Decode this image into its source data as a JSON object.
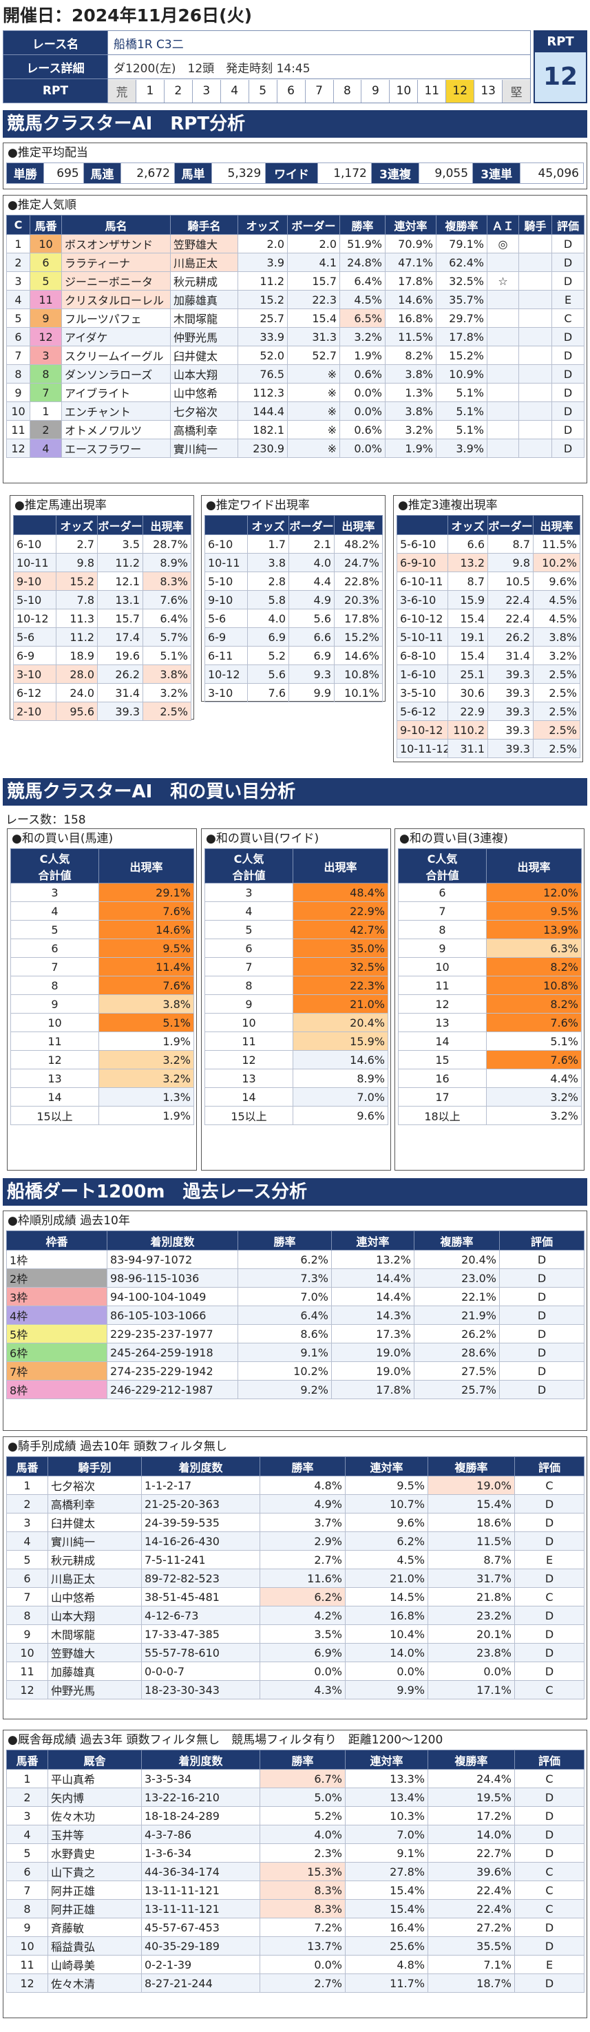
{
  "header": {
    "date": "開催日：2024年11月26日(火)",
    "race_name_label": "レース名",
    "race_name": "船橋1R C3二",
    "race_detail_label": "レース詳細",
    "race_detail": "ダ1200(左)　12頭　発走時刻 14:45",
    "rpt_label": "RPT",
    "rpt_scale": [
      "荒",
      "1",
      "2",
      "3",
      "4",
      "5",
      "6",
      "7",
      "8",
      "9",
      "10",
      "11",
      "12",
      "13",
      "堅"
    ],
    "rpt_selected": "12",
    "rpt_box_title": "RPT",
    "rpt_box_value": "12"
  },
  "section1": {
    "title": "競馬クラスターAI　RPT分析",
    "payout": {
      "title": "●推定平均配当",
      "items": [
        {
          "k": "単勝",
          "v": "695"
        },
        {
          "k": "馬連",
          "v": "2,672"
        },
        {
          "k": "馬単",
          "v": "5,329"
        },
        {
          "k": "ワイド",
          "v": "1,172"
        },
        {
          "k": "3連複",
          "v": "9,055"
        },
        {
          "k": "3連単",
          "v": "45,096"
        }
      ]
    },
    "popularity": {
      "title": "●推定人気順",
      "headers": [
        "C",
        "馬番",
        "馬名",
        "騎手名",
        "オッズ",
        "ボーダー",
        "勝率",
        "連対率",
        "複勝率",
        "ＡＩ",
        "騎手",
        "評価"
      ],
      "rows": [
        [
          "1",
          "10",
          "ボスオンザサンド",
          "笠野雄大",
          "2.0",
          "2.0",
          "51.9%",
          "70.9%",
          "79.1%",
          "◎",
          "",
          "D"
        ],
        [
          "2",
          "6",
          "ララティーナ",
          "川島正太",
          "3.9",
          "4.1",
          "24.8%",
          "47.1%",
          "62.4%",
          "",
          "",
          "D"
        ],
        [
          "3",
          "5",
          "ジーニーボニータ",
          "秋元耕成",
          "11.2",
          "15.7",
          "6.4%",
          "17.8%",
          "32.5%",
          "☆",
          "",
          "D"
        ],
        [
          "4",
          "11",
          "クリスタルローレル",
          "加藤雄真",
          "15.2",
          "22.3",
          "4.5%",
          "14.6%",
          "35.7%",
          "",
          "",
          "E"
        ],
        [
          "5",
          "9",
          "フルーツパフェ",
          "木間塚龍",
          "25.7",
          "15.4",
          "6.5%",
          "16.8%",
          "29.7%",
          "",
          "",
          "C"
        ],
        [
          "6",
          "12",
          "アイダケ",
          "仲野光馬",
          "33.9",
          "31.3",
          "3.2%",
          "11.5%",
          "17.8%",
          "",
          "",
          "D"
        ],
        [
          "7",
          "3",
          "スクリームイーグル",
          "臼井健太",
          "52.0",
          "52.7",
          "1.9%",
          "8.2%",
          "15.2%",
          "",
          "",
          "D"
        ],
        [
          "8",
          "8",
          "ダンソンラローズ",
          "山本大翔",
          "76.5",
          "※",
          "0.6%",
          "3.8%",
          "10.9%",
          "",
          "",
          "D"
        ],
        [
          "9",
          "7",
          "アイブライト",
          "山中悠希",
          "112.3",
          "※",
          "0.0%",
          "1.3%",
          "5.1%",
          "",
          "",
          "D"
        ],
        [
          "10",
          "1",
          "エンチャント",
          "七夕裕次",
          "144.4",
          "※",
          "0.0%",
          "3.8%",
          "5.1%",
          "",
          "",
          "D"
        ],
        [
          "11",
          "2",
          "オトメノワルツ",
          "高橋利幸",
          "182.1",
          "※",
          "0.6%",
          "3.2%",
          "5.1%",
          "",
          "",
          "D"
        ],
        [
          "12",
          "4",
          "エースフラワー",
          "實川純一",
          "230.9",
          "※",
          "0.0%",
          "1.9%",
          "3.9%",
          "",
          "",
          "D"
        ]
      ]
    },
    "umaren": {
      "title": "●推定馬連出現率",
      "headers": [
        "",
        "オッズ",
        "ボーダー",
        "出現率"
      ],
      "rows": [
        [
          "6-10",
          "2.7",
          "3.5",
          "28.7%"
        ],
        [
          "10-11",
          "9.8",
          "11.2",
          "8.9%"
        ],
        [
          "9-10",
          "15.2",
          "12.1",
          "8.3%"
        ],
        [
          "5-10",
          "7.8",
          "13.1",
          "7.6%"
        ],
        [
          "10-12",
          "11.3",
          "15.7",
          "6.4%"
        ],
        [
          "5-6",
          "11.2",
          "17.4",
          "5.7%"
        ],
        [
          "6-9",
          "18.9",
          "19.6",
          "5.1%"
        ],
        [
          "3-10",
          "28.0",
          "26.2",
          "3.8%"
        ],
        [
          "6-12",
          "24.0",
          "31.4",
          "3.2%"
        ],
        [
          "2-10",
          "95.6",
          "39.3",
          "2.5%"
        ]
      ]
    },
    "wide": {
      "title": "●推定ワイド出現率",
      "headers": [
        "",
        "オッズ",
        "ボーダー",
        "出現率"
      ],
      "rows": [
        [
          "6-10",
          "1.7",
          "2.1",
          "48.2%"
        ],
        [
          "10-11",
          "3.8",
          "4.0",
          "24.7%"
        ],
        [
          "5-10",
          "2.8",
          "4.4",
          "22.8%"
        ],
        [
          "9-10",
          "5.8",
          "4.9",
          "20.3%"
        ],
        [
          "5-6",
          "4.0",
          "5.6",
          "17.8%"
        ],
        [
          "6-9",
          "6.9",
          "6.6",
          "15.2%"
        ],
        [
          "6-11",
          "5.2",
          "6.9",
          "14.6%"
        ],
        [
          "10-12",
          "5.6",
          "9.3",
          "10.8%"
        ],
        [
          "3-10",
          "7.6",
          "9.9",
          "10.1%"
        ]
      ]
    },
    "trio": {
      "title": "●推定3連複出現率",
      "headers": [
        "",
        "オッズ",
        "ボーダー",
        "出現率"
      ],
      "rows": [
        [
          "5-6-10",
          "6.6",
          "8.7",
          "11.5%"
        ],
        [
          "6-9-10",
          "13.2",
          "9.8",
          "10.2%"
        ],
        [
          "6-10-11",
          "8.7",
          "10.5",
          "9.6%"
        ],
        [
          "3-6-10",
          "15.9",
          "22.4",
          "4.5%"
        ],
        [
          "6-10-12",
          "15.4",
          "22.4",
          "4.5%"
        ],
        [
          "5-10-11",
          "19.1",
          "26.2",
          "3.8%"
        ],
        [
          "6-8-10",
          "15.4",
          "31.4",
          "3.2%"
        ],
        [
          "1-6-10",
          "25.1",
          "39.3",
          "2.5%"
        ],
        [
          "3-5-10",
          "30.6",
          "39.3",
          "2.5%"
        ],
        [
          "5-6-12",
          "22.9",
          "39.3",
          "2.5%"
        ],
        [
          "9-10-12",
          "110.2",
          "39.3",
          "2.5%"
        ],
        [
          "10-11-12",
          "31.1",
          "39.3",
          "2.5%"
        ]
      ]
    }
  },
  "section2": {
    "title": "競馬クラスターAI　和の買い目分析",
    "race_count": "レース数：158",
    "tables": [
      {
        "title": "●和の買い目(馬連)",
        "h1": "C人気",
        "h2": "合計値",
        "h3": "出現率",
        "rows": [
          [
            "3",
            "29.1%"
          ],
          [
            "4",
            "7.6%"
          ],
          [
            "5",
            "14.6%"
          ],
          [
            "6",
            "9.5%"
          ],
          [
            "7",
            "11.4%"
          ],
          [
            "8",
            "7.6%"
          ],
          [
            "9",
            "3.8%"
          ],
          [
            "10",
            "5.1%"
          ],
          [
            "11",
            "1.9%"
          ],
          [
            "12",
            "3.2%"
          ],
          [
            "13",
            "3.2%"
          ],
          [
            "14",
            "1.3%"
          ],
          [
            "15以上",
            "1.9%"
          ]
        ]
      },
      {
        "title": "●和の買い目(ワイド)",
        "h1": "C人気",
        "h2": "合計値",
        "h3": "出現率",
        "rows": [
          [
            "3",
            "48.4%"
          ],
          [
            "4",
            "22.9%"
          ],
          [
            "5",
            "42.7%"
          ],
          [
            "6",
            "35.0%"
          ],
          [
            "7",
            "32.5%"
          ],
          [
            "8",
            "22.3%"
          ],
          [
            "9",
            "21.0%"
          ],
          [
            "10",
            "20.4%"
          ],
          [
            "11",
            "15.9%"
          ],
          [
            "12",
            "14.6%"
          ],
          [
            "13",
            "8.9%"
          ],
          [
            "14",
            "7.0%"
          ],
          [
            "15以上",
            "9.6%"
          ]
        ]
      },
      {
        "title": "●和の買い目(3連複)",
        "h1": "C人気",
        "h2": "合計値",
        "h3": "出現率",
        "rows": [
          [
            "6",
            "12.0%"
          ],
          [
            "7",
            "9.5%"
          ],
          [
            "8",
            "13.9%"
          ],
          [
            "9",
            "6.3%"
          ],
          [
            "10",
            "8.2%"
          ],
          [
            "11",
            "10.8%"
          ],
          [
            "12",
            "8.2%"
          ],
          [
            "13",
            "7.6%"
          ],
          [
            "14",
            "5.1%"
          ],
          [
            "15",
            "7.6%"
          ],
          [
            "16",
            "4.4%"
          ],
          [
            "17",
            "3.2%"
          ],
          [
            "18以上",
            "3.2%"
          ]
        ]
      }
    ]
  },
  "section3": {
    "title": "船橋ダート1200m　過去レース分析",
    "waku": {
      "title": "●枠順別成績 過去10年",
      "headers": [
        "枠番",
        "着別度数",
        "勝率",
        "連対率",
        "複勝率",
        "評価"
      ],
      "rows": [
        [
          "1枠",
          "83-94-97-1072",
          "6.2%",
          "13.2%",
          "20.4%",
          "D"
        ],
        [
          "2枠",
          "98-96-115-1036",
          "7.3%",
          "14.4%",
          "23.0%",
          "D"
        ],
        [
          "3枠",
          "94-100-104-1049",
          "7.0%",
          "14.4%",
          "22.1%",
          "D"
        ],
        [
          "4枠",
          "86-105-103-1066",
          "6.4%",
          "14.3%",
          "21.9%",
          "D"
        ],
        [
          "5枠",
          "229-235-237-1977",
          "8.6%",
          "17.3%",
          "26.2%",
          "D"
        ],
        [
          "6枠",
          "245-264-259-1918",
          "9.1%",
          "19.0%",
          "28.6%",
          "D"
        ],
        [
          "7枠",
          "274-235-229-1942",
          "10.2%",
          "19.0%",
          "27.5%",
          "D"
        ],
        [
          "8枠",
          "246-229-212-1987",
          "9.2%",
          "17.8%",
          "25.7%",
          "D"
        ]
      ]
    },
    "jockey": {
      "title": "●騎手別成績 過去10年 頭数フィルタ無し",
      "headers": [
        "馬番",
        "騎手別",
        "着別度数",
        "勝率",
        "連対率",
        "複勝率",
        "評価"
      ],
      "rows": [
        [
          "1",
          "七夕裕次",
          "1-1-2-17",
          "4.8%",
          "9.5%",
          "19.0%",
          "C"
        ],
        [
          "2",
          "高橋利幸",
          "21-25-20-363",
          "4.9%",
          "10.7%",
          "15.4%",
          "D"
        ],
        [
          "3",
          "臼井健太",
          "24-39-59-535",
          "3.7%",
          "9.6%",
          "18.6%",
          "D"
        ],
        [
          "4",
          "實川純一",
          "14-16-26-430",
          "2.9%",
          "6.2%",
          "11.5%",
          "D"
        ],
        [
          "5",
          "秋元耕成",
          "7-5-11-241",
          "2.7%",
          "4.5%",
          "8.7%",
          "E"
        ],
        [
          "6",
          "川島正太",
          "89-72-82-523",
          "11.6%",
          "21.0%",
          "31.7%",
          "D"
        ],
        [
          "7",
          "山中悠希",
          "38-51-45-481",
          "6.2%",
          "14.5%",
          "21.8%",
          "C"
        ],
        [
          "8",
          "山本大翔",
          "4-12-6-73",
          "4.2%",
          "16.8%",
          "23.2%",
          "D"
        ],
        [
          "9",
          "木間塚龍",
          "17-33-47-385",
          "3.5%",
          "10.4%",
          "20.1%",
          "D"
        ],
        [
          "10",
          "笠野雄大",
          "55-57-78-610",
          "6.9%",
          "14.0%",
          "23.8%",
          "D"
        ],
        [
          "11",
          "加藤雄真",
          "0-0-0-7",
          "0.0%",
          "0.0%",
          "0.0%",
          "D"
        ],
        [
          "12",
          "仲野光馬",
          "18-23-30-343",
          "4.3%",
          "9.9%",
          "17.1%",
          "C"
        ]
      ]
    },
    "trainer": {
      "title": "●厩舎毎成績 過去3年 頭数フィルタ無し　競馬場フィルタ有り　距離1200～1200",
      "headers": [
        "馬番",
        "厩舎",
        "着別度数",
        "勝率",
        "連対率",
        "複勝率",
        "評価"
      ],
      "rows": [
        [
          "1",
          "平山真希",
          "3-3-5-34",
          "6.7%",
          "13.3%",
          "24.4%",
          "C"
        ],
        [
          "2",
          "矢内博",
          "13-22-16-210",
          "5.0%",
          "13.4%",
          "19.5%",
          "D"
        ],
        [
          "3",
          "佐々木功",
          "18-18-24-289",
          "5.2%",
          "10.3%",
          "17.2%",
          "D"
        ],
        [
          "4",
          "玉井等",
          "4-3-7-86",
          "4.0%",
          "7.0%",
          "14.0%",
          "D"
        ],
        [
          "5",
          "水野貴史",
          "1-3-6-34",
          "2.3%",
          "9.1%",
          "22.7%",
          "D"
        ],
        [
          "6",
          "山下貴之",
          "44-36-34-174",
          "15.3%",
          "27.8%",
          "39.6%",
          "C"
        ],
        [
          "7",
          "阿井正雄",
          "13-11-11-121",
          "8.3%",
          "15.4%",
          "22.4%",
          "C"
        ],
        [
          "8",
          "阿井正雄",
          "13-11-11-121",
          "8.3%",
          "15.4%",
          "22.4%",
          "C"
        ],
        [
          "9",
          "斉藤敏",
          "45-57-67-453",
          "7.2%",
          "16.4%",
          "27.2%",
          "D"
        ],
        [
          "10",
          "稲益貴弘",
          "40-35-29-189",
          "13.7%",
          "25.6%",
          "35.5%",
          "D"
        ],
        [
          "11",
          "山崎尋美",
          "0-2-1-39",
          "0.0%",
          "4.8%",
          "7.1%",
          "E"
        ],
        [
          "12",
          "佐々木清",
          "8-27-21-244",
          "2.7%",
          "11.7%",
          "18.7%",
          "D"
        ]
      ]
    }
  },
  "colors": {
    "navy": "#1f3a70",
    "orange": "#fd8a2a",
    "light_orange": "#fdd9a6",
    "pink_highlight": "#fde1d4",
    "rpt_selected": "#f7d332"
  }
}
